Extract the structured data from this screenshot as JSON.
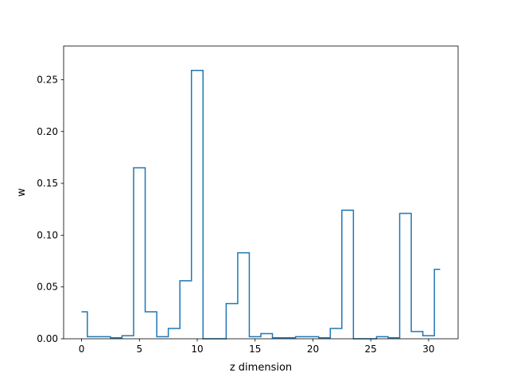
{
  "chart_data": {
    "type": "line",
    "drawstyle": "steps-mid",
    "xlabel": "z dimension",
    "ylabel": "w",
    "xlim": [
      -1.55,
      32.55
    ],
    "ylim": [
      0,
      0.2825
    ],
    "x_ticks": [
      0,
      5,
      10,
      15,
      20,
      25,
      30
    ],
    "y_ticks": [
      0.0,
      0.05,
      0.1,
      0.15,
      0.2,
      0.25
    ],
    "y_tick_labels": [
      "0.00",
      "0.05",
      "0.10",
      "0.15",
      "0.20",
      "0.25"
    ],
    "grid": false,
    "line_color": "#1f77b4",
    "x": [
      0,
      1,
      2,
      3,
      4,
      5,
      6,
      7,
      8,
      9,
      10,
      11,
      12,
      13,
      14,
      15,
      16,
      17,
      18,
      19,
      20,
      21,
      22,
      23,
      24,
      25,
      26,
      27,
      28,
      29,
      30,
      31
    ],
    "values": [
      0.026,
      0.002,
      0.002,
      0.001,
      0.003,
      0.165,
      0.026,
      0.002,
      0.01,
      0.056,
      0.259,
      0.0,
      0.0,
      0.034,
      0.083,
      0.002,
      0.005,
      0.001,
      0.001,
      0.002,
      0.002,
      0.001,
      0.01,
      0.124,
      0.0,
      0.0,
      0.002,
      0.001,
      0.121,
      0.007,
      0.003,
      0.067
    ]
  }
}
